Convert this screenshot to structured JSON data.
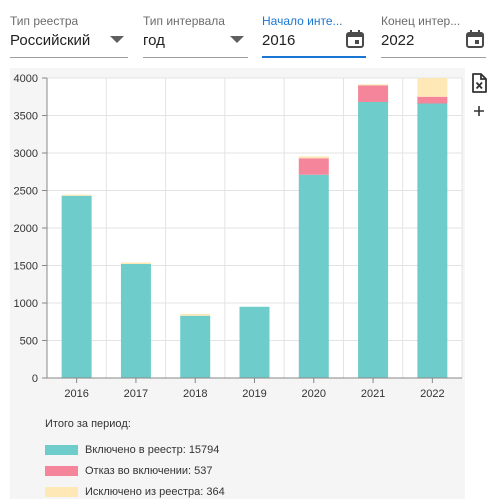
{
  "filters": [
    {
      "label": "Тип реестра",
      "value": "Российский",
      "icon": "dropdown-arrow-icon",
      "active": false
    },
    {
      "label": "Тип интервала",
      "value": "год",
      "icon": "dropdown-arrow-icon",
      "active": false
    },
    {
      "label": "Начало инте...",
      "value": "2016",
      "icon": "calendar-icon",
      "active": true
    },
    {
      "label": "Конец интер...",
      "value": "2022",
      "icon": "calendar-icon",
      "active": false
    }
  ],
  "tools": [
    {
      "name": "excel-export-icon"
    },
    {
      "name": "add-icon",
      "glyph": "+"
    }
  ],
  "colors": {
    "included": "#6ecdcb",
    "refused": "#f4859a",
    "excluded": "#fde8b6",
    "accent": "#1976d2"
  },
  "chart_data": {
    "type": "bar",
    "stacked": true,
    "categories": [
      "2016",
      "2017",
      "2018",
      "2019",
      "2020",
      "2021",
      "2022"
    ],
    "series": [
      {
        "key": "included",
        "values": [
          2430,
          1520,
          830,
          950,
          2710,
          3680,
          3660
        ]
      },
      {
        "key": "refused",
        "values": [
          0,
          0,
          0,
          0,
          220,
          220,
          90
        ]
      },
      {
        "key": "excluded",
        "values": [
          15,
          20,
          25,
          0,
          25,
          15,
          250
        ]
      }
    ],
    "ylim": [
      0,
      4000
    ],
    "yticks": [
      0,
      500,
      1000,
      1500,
      2000,
      2500,
      3000,
      3500,
      4000
    ],
    "grid": true
  },
  "legend": {
    "title": "Итого за период:",
    "items": [
      {
        "key": "included",
        "label": "Включено в реестр: 15794"
      },
      {
        "key": "refused",
        "label": "Отказ во включении: 537"
      },
      {
        "key": "excluded",
        "label": "Исключено из реестра: 364"
      }
    ]
  }
}
